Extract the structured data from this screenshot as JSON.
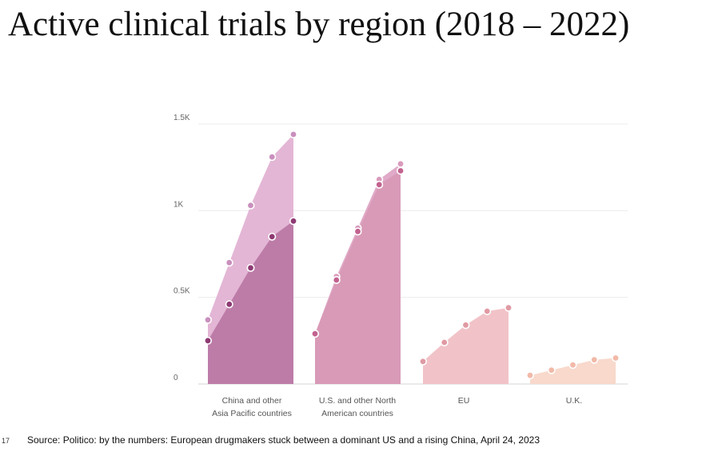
{
  "page": {
    "title": "Active clinical trials by region (2018 – 2022)",
    "slide_number": "17",
    "source": "Source: Politico: by the numbers: European drugmakers stuck between a dominant US and a rising China, April 24, 2023"
  },
  "chart_data": {
    "type": "area",
    "title": "Active clinical trials by region (2018 – 2022)",
    "xlabel": "",
    "ylabel": "",
    "ylim": [
      0,
      1500
    ],
    "y_ticks": [
      {
        "value": 0,
        "label": "0"
      },
      {
        "value": 500,
        "label": "0.5K"
      },
      {
        "value": 1000,
        "label": "1K"
      },
      {
        "value": 1500,
        "label": "1.5K"
      }
    ],
    "grid": true,
    "legend": "none",
    "groups": [
      {
        "label": [
          "China and other",
          "Asia Pacific countries"
        ],
        "layers": [
          {
            "values": [
              370,
              700,
              1030,
              1310,
              1440
            ],
            "fill": "#e3b6d5",
            "point": "#c98fbd"
          },
          {
            "values": [
              250,
              460,
              670,
              850,
              940
            ],
            "fill": "#bd7ca8",
            "point": "#8e3a73"
          }
        ]
      },
      {
        "label": [
          "U.S. and other North",
          "American countries"
        ],
        "layers": [
          {
            "values": [
              290,
              620,
              900,
              1180,
              1270
            ],
            "fill": "#e0aac8",
            "point": "#d99bbd"
          },
          {
            "values": [
              290,
              600,
              880,
              1150,
              1230
            ],
            "fill": "#d89ab7",
            "point": "#c2628f"
          }
        ]
      },
      {
        "label": [
          "EU"
        ],
        "layers": [
          {
            "values": [
              130,
              240,
              340,
              420,
              440
            ],
            "fill": "#f1c3c8",
            "point": "#e09aa3"
          }
        ]
      },
      {
        "label": [
          "U.K."
        ],
        "layers": [
          {
            "values": [
              50,
              80,
              110,
              140,
              150
            ],
            "fill": "#f8d9cc",
            "point": "#f2b9a8"
          }
        ]
      }
    ]
  }
}
